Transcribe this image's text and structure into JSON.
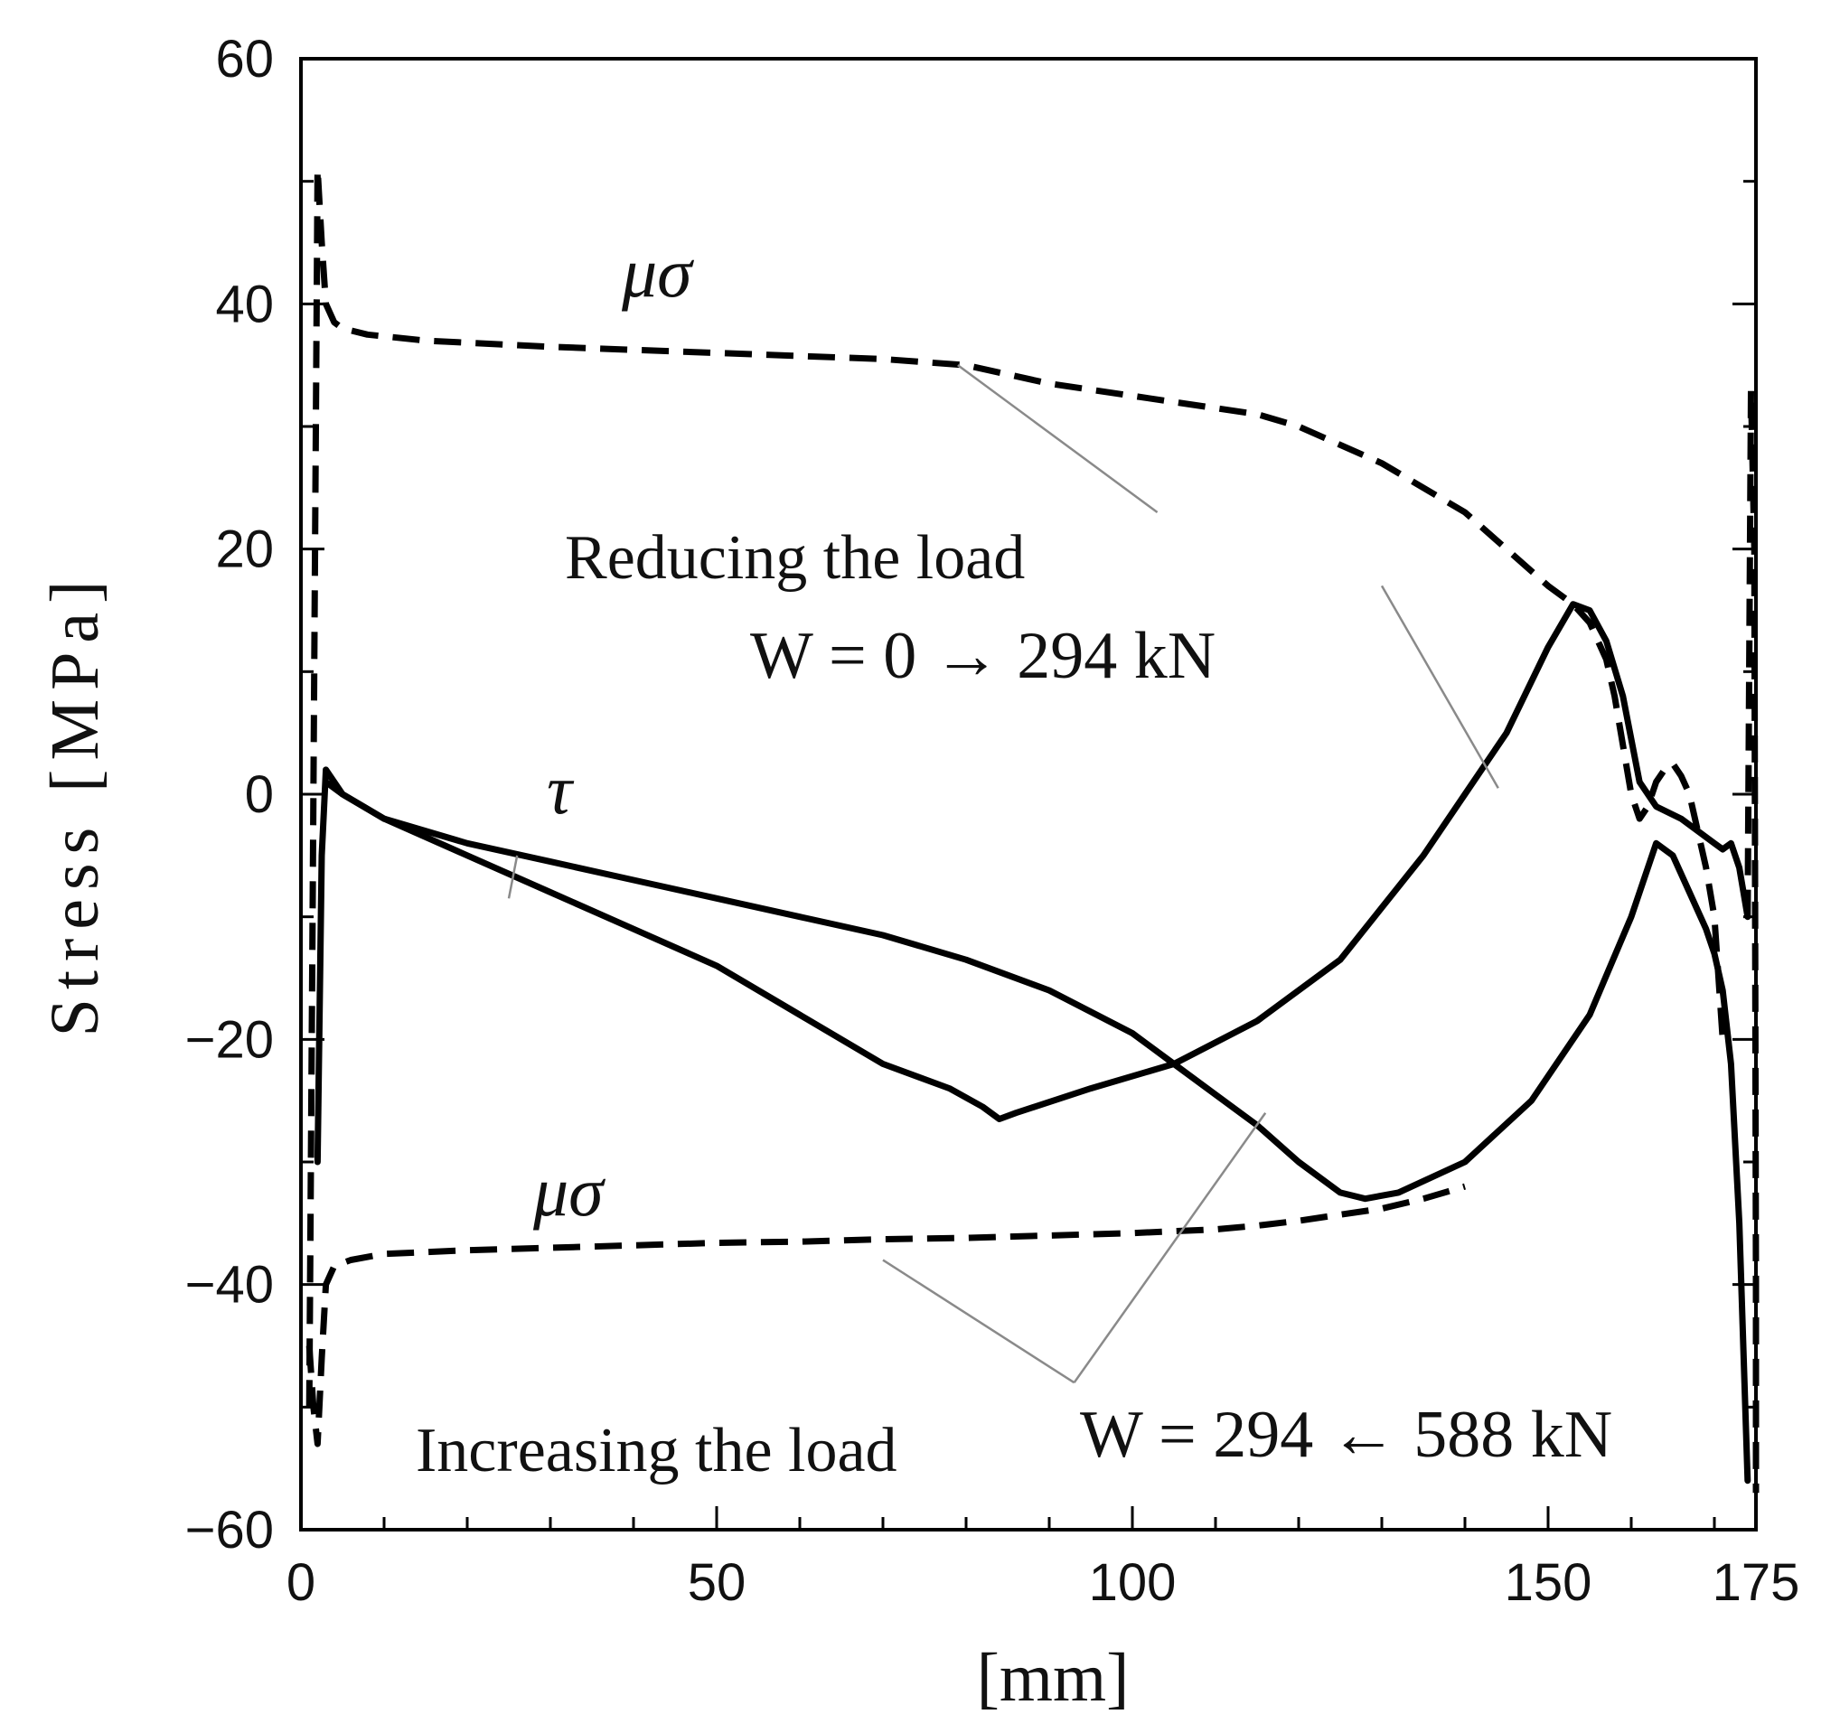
{
  "chart_data": {
    "type": "line",
    "title": "",
    "xlabel": "[mm]",
    "ylabel": "Stress [MPa]",
    "xlim": [
      0,
      175
    ],
    "ylim": [
      -60,
      60
    ],
    "x_ticks": [
      0,
      50,
      100,
      150,
      175
    ],
    "y_ticks": [
      60,
      40,
      20,
      0,
      -20,
      -40,
      -60
    ],
    "x_tick_labels": [
      "0",
      "50",
      "100",
      "150",
      "175"
    ],
    "y_tick_labels": [
      "60",
      "40",
      "20",
      "0",
      "−20",
      "−40",
      "−60"
    ],
    "grid": false,
    "series": [
      {
        "key": "tau_reducing",
        "style": "solid",
        "x": [
          2,
          2.5,
          3,
          5,
          10,
          20,
          30,
          40,
          50,
          60,
          70,
          78,
          82,
          84,
          86,
          95,
          105,
          115,
          125,
          135,
          140,
          145,
          150,
          153,
          155,
          157,
          159,
          161,
          163,
          166,
          168,
          170,
          171,
          172,
          173,
          174
        ],
        "y": [
          -30,
          -5,
          2,
          0,
          -2,
          -5,
          -8,
          -11,
          -14,
          -18,
          -22,
          -24,
          -25.5,
          -26.5,
          -26,
          -24,
          -22,
          -18.5,
          -13.5,
          -5,
          0,
          5,
          12,
          15.5,
          15,
          12.5,
          8,
          1,
          -1,
          -2,
          -3,
          -4,
          -4.5,
          -4,
          -6,
          -10
        ]
      },
      {
        "key": "tau_increasing",
        "style": "solid",
        "x": [
          3,
          5,
          10,
          20,
          30,
          40,
          50,
          60,
          70,
          80,
          90,
          100,
          105,
          110,
          115,
          120,
          125,
          128,
          132,
          140,
          148,
          155,
          160,
          163,
          165,
          167,
          169,
          170,
          171,
          172,
          173,
          174
        ],
        "y": [
          1,
          0,
          -2,
          -4,
          -5.5,
          -7,
          -8.5,
          -10,
          -11.5,
          -13.5,
          -16,
          -19.5,
          -22,
          -24.5,
          -27,
          -30,
          -32.5,
          -33,
          -32.5,
          -30,
          -25,
          -18,
          -10,
          -4,
          -5,
          -8,
          -11,
          -13,
          -16,
          -22,
          -35,
          -56
        ]
      },
      {
        "key": "mu_sigma_upper",
        "style": "dashed",
        "x": [
          1,
          1.5,
          2,
          2.5,
          3,
          4,
          5,
          8,
          15,
          30,
          50,
          70,
          80,
          90,
          100,
          110,
          115,
          120,
          130,
          140,
          145,
          150,
          153,
          155,
          157,
          158,
          159,
          160,
          161,
          162,
          163,
          164,
          165,
          166,
          167,
          168,
          169,
          170,
          171
        ],
        "y": [
          -50,
          0,
          51,
          45,
          40,
          38.5,
          38,
          37.5,
          37,
          36.5,
          36,
          35.5,
          35,
          33.5,
          32.5,
          31.5,
          31,
          30,
          27,
          23,
          20,
          17,
          15.5,
          14,
          11,
          8,
          4,
          0,
          -2,
          -1,
          1,
          2,
          2.5,
          1.5,
          0,
          -3,
          -6,
          -10,
          -20
        ]
      },
      {
        "key": "mu_sigma_lower",
        "style": "dashed",
        "x": [
          1,
          1.5,
          2,
          2.5,
          3,
          4,
          6,
          10,
          20,
          30,
          40,
          50,
          60,
          70,
          80,
          90,
          100,
          110,
          115,
          120,
          125,
          130,
          135,
          140
        ],
        "y": [
          -45,
          -50,
          -53,
          -46,
          -40,
          -38.5,
          -38,
          -37.5,
          -37.2,
          -37,
          -36.8,
          -36.6,
          -36.5,
          -36.3,
          -36.2,
          -36,
          -35.8,
          -35.5,
          -35.2,
          -34.8,
          -34.3,
          -33.8,
          -33,
          -32
        ]
      },
      {
        "key": "right_edge_spike",
        "style": "dashed",
        "x": [
          174,
          174.4,
          174.8,
          175,
          175
        ],
        "y": [
          -10,
          33,
          20,
          -40,
          -57
        ]
      }
    ],
    "annotations": {
      "mu_sigma_top": "μσ",
      "mu_sigma_bottom": "μσ",
      "tau": "τ",
      "reducing_label": "Reducing the load",
      "reducing_formula": "W = 0 → 294  kN",
      "increasing_label": "Increasing the load",
      "increasing_formula": "W = 294 ← 588 kN"
    }
  }
}
